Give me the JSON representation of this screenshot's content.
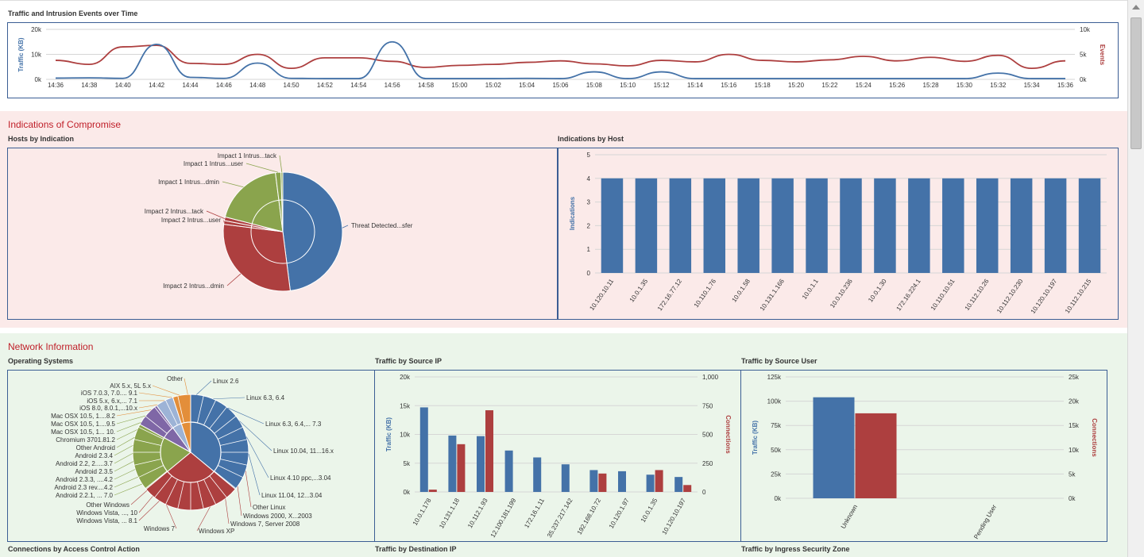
{
  "colors": {
    "blue": "#4472a8",
    "red": "#ad3f3f",
    "green": "#8aa44d",
    "purple": "#7f67a6",
    "orange": "#e38e3a",
    "ltblue": "#9db3d6",
    "pinkband": "#fbeae9",
    "greenband": "#ebf5ea",
    "panelborder": "#3b5e94",
    "titlered": "#c0202a"
  },
  "traffic_events": {
    "title": "Traffic and Intrusion Events over Time",
    "ylabel_left": "Traffic (KB)",
    "ylabel_right": "Events",
    "left_ticks": [
      "20k",
      "10k",
      "0k"
    ],
    "right_ticks": [
      "10k",
      "5k",
      "0k"
    ],
    "x_labels": [
      "14:36",
      "14:38",
      "14:40",
      "14:42",
      "14:44",
      "14:46",
      "14:48",
      "14:50",
      "14:52",
      "14:54",
      "14:56",
      "14:58",
      "15:00",
      "15:02",
      "15:04",
      "15:06",
      "15:08",
      "15:10",
      "15:12",
      "15:14",
      "15:16",
      "15:18",
      "15:20",
      "15:22",
      "15:24",
      "15:26",
      "15:28",
      "15:30",
      "15:32",
      "15:34",
      "15:36"
    ]
  },
  "ioc": {
    "section_title": "Indications of Compromise",
    "hosts_by_indication": {
      "title": "Hosts by Indication",
      "labels": [
        "Impact 1 Intrus...tack",
        "Impact 1 Intrus...user",
        "Impact 1 Intrus...dmin",
        "Impact 2 Intrus...tack",
        "Impact 2 Intrus...user",
        "Impact 2 Intrus...dmin",
        "Threat Detected...sfer"
      ]
    },
    "indications_by_host": {
      "title": "Indications by Host",
      "ylabel": "Indications",
      "y_ticks": [
        "5",
        "4",
        "3",
        "2",
        "1",
        "0"
      ]
    }
  },
  "network": {
    "section_title": "Network Information",
    "os": {
      "title": "Operating Systems",
      "left_labels": [
        "Other",
        "AIX 5.x, 5L 5.x",
        "iOS 7.0.3, 7.0.... 9.1",
        "iOS 5.x, 6.x,... 7.1",
        "iOS 8.0, 8.0.1,...10.x",
        "Mac OSX 10.5, 1....8.2",
        "Mac OSX 10.5, 1....9.5",
        "Mac OSX 10.5, 1... 10.",
        "Chromium 3701.81.2",
        "Other Android",
        "Android 2.3.4",
        "Android 2.2, 2.....3.7",
        "Android 2.3.5",
        "Android 2.3.3, ....4.2",
        "Android 2.3 rev....4.2",
        "Android 2.2.1, ... 7.0",
        "Other Windows",
        "Windows Vista, ..., 10",
        "Windows Vista, ... 8.1",
        "Windows 7"
      ],
      "right_labels": [
        "Linux 2.6",
        "Linux 6.3, 6.4",
        "Linux 6.3, 6.4,... 7.3",
        "Linux 10.04, 11...16.x",
        "Linux 4.10 ppc,...3.04",
        "Linux 11.04, 12...3.04",
        "Other Linux",
        "Windows 2000, X...2003",
        "Windows 7, Server 2008",
        "Windows XP"
      ]
    },
    "traffic_by_source_ip": {
      "title": "Traffic by Source IP",
      "ylabel_left": "Traffic (KB)",
      "ylabel_right": "Connections",
      "left_ticks": [
        "20k",
        "15k",
        "10k",
        "5k",
        "0k"
      ],
      "right_ticks": [
        "1,000",
        "750",
        "500",
        "250",
        "0"
      ]
    },
    "traffic_by_source_user": {
      "title": "Traffic by Source User",
      "ylabel_left": "Traffic (KB)",
      "ylabel_right": "Connections",
      "left_ticks": [
        "125k",
        "100k",
        "75k",
        "50k",
        "25k",
        "0k"
      ],
      "right_ticks": [
        "25k",
        "20k",
        "15k",
        "10k",
        "5k",
        "0k"
      ]
    },
    "bottom_titles": [
      "Connections by Access Control Action",
      "Traffic by Destination IP",
      "Traffic by Ingress Security Zone"
    ]
  },
  "chart_data": [
    {
      "type": "line",
      "title": "Traffic and Intrusion Events over Time",
      "ylabel": "Traffic (KB)",
      "ylabel_right": "Events",
      "ylim": [
        0,
        20000
      ],
      "ylim_right": [
        0,
        10000
      ],
      "x": [
        "14:36",
        "14:38",
        "14:40",
        "14:42",
        "14:44",
        "14:46",
        "14:48",
        "14:50",
        "14:52",
        "14:54",
        "14:56",
        "14:58",
        "15:00",
        "15:02",
        "15:04",
        "15:06",
        "15:08",
        "15:10",
        "15:12",
        "15:14",
        "15:16",
        "15:18",
        "15:20",
        "15:22",
        "15:24",
        "15:26",
        "15:28",
        "15:30",
        "15:32",
        "15:34",
        "15:36"
      ],
      "series": [
        {
          "name": "Traffic (KB)",
          "axis": "left",
          "values": [
            500,
            600,
            400,
            14000,
            800,
            400,
            6500,
            400,
            300,
            300,
            15000,
            300,
            300,
            300,
            400,
            300,
            3000,
            300,
            3000,
            300,
            300,
            300,
            300,
            300,
            300,
            300,
            300,
            300,
            2500,
            300,
            300
          ]
        },
        {
          "name": "Events",
          "axis": "right",
          "values": [
            3800,
            3000,
            6500,
            6800,
            3200,
            3000,
            5000,
            2200,
            4300,
            4300,
            3600,
            2400,
            2800,
            3000,
            3400,
            3700,
            3100,
            2700,
            3800,
            3500,
            5000,
            3800,
            3500,
            3900,
            4600,
            3700,
            4400,
            3600,
            4800,
            2200,
            3700
          ]
        }
      ]
    },
    {
      "type": "pie",
      "title": "Hosts by Indication",
      "categories": [
        "Threat Detected...sfer",
        "Impact 2 Intrus...dmin",
        "Impact 2 Intrus...user",
        "Impact 2 Intrus...tack",
        "Impact 1 Intrus...dmin",
        "Impact 1 Intrus...user",
        "Impact 1 Intrus...tack"
      ],
      "values": [
        48,
        29,
        1,
        1,
        19,
        1.5,
        0.5
      ]
    },
    {
      "type": "bar",
      "title": "Indications by Host",
      "ylabel": "Indications",
      "ylim": [
        0,
        5
      ],
      "categories": [
        "10.120.10.11",
        "10.0.1.35",
        "172.16.77.12",
        "10.110.1.76",
        "10.0.1.58",
        "10.131.1.166",
        "10.0.1.1",
        "10.0.10.236",
        "10.0.1.30",
        "172.16.224.1",
        "10.110.10.51",
        "10.112.10.26",
        "10.112.10.230",
        "10.120.10.197",
        "10.112.10.215"
      ],
      "values": [
        4,
        4,
        4,
        4,
        4,
        4,
        4,
        4,
        4,
        4,
        4,
        4,
        4,
        4,
        4
      ]
    },
    {
      "type": "pie",
      "title": "Operating Systems",
      "categories": [
        "Linux",
        "Windows",
        "Android",
        "Mac OSX",
        "iOS",
        "Other"
      ],
      "values": [
        36,
        28,
        19,
        7,
        5,
        5
      ]
    },
    {
      "type": "bar",
      "title": "Traffic by Source IP",
      "ylabel": "Traffic (KB)",
      "ylabel_right": "Connections",
      "ylim": [
        0,
        20000
      ],
      "ylim_right": [
        0,
        1000
      ],
      "categories": [
        "10.0.1.178",
        "10.131.1.18",
        "10.112.1.93",
        "12.100.181.199",
        "172.16.1.11",
        "35.237.217.142",
        "192.168.10.72",
        "10.120.1.97",
        "10.0.1.35",
        "10.120.10.197"
      ],
      "series": [
        {
          "name": "Traffic (KB)",
          "axis": "left",
          "values": [
            14700,
            9800,
            9700,
            7200,
            6000,
            4800,
            3800,
            3600,
            3000,
            2600
          ]
        },
        {
          "name": "Connections",
          "axis": "right",
          "values": [
            20,
            415,
            710,
            0,
            0,
            0,
            160,
            0,
            190,
            60
          ]
        }
      ]
    },
    {
      "type": "bar",
      "title": "Traffic by Source User",
      "ylabel": "Traffic (KB)",
      "ylabel_right": "Connections",
      "ylim": [
        0,
        125000
      ],
      "ylim_right": [
        0,
        25000
      ],
      "categories": [
        "Unknown",
        "Pending User"
      ],
      "series": [
        {
          "name": "Traffic (KB)",
          "axis": "left",
          "values": [
            104000,
            0
          ]
        },
        {
          "name": "Connections",
          "axis": "right",
          "values": [
            17500,
            0
          ]
        }
      ]
    }
  ]
}
